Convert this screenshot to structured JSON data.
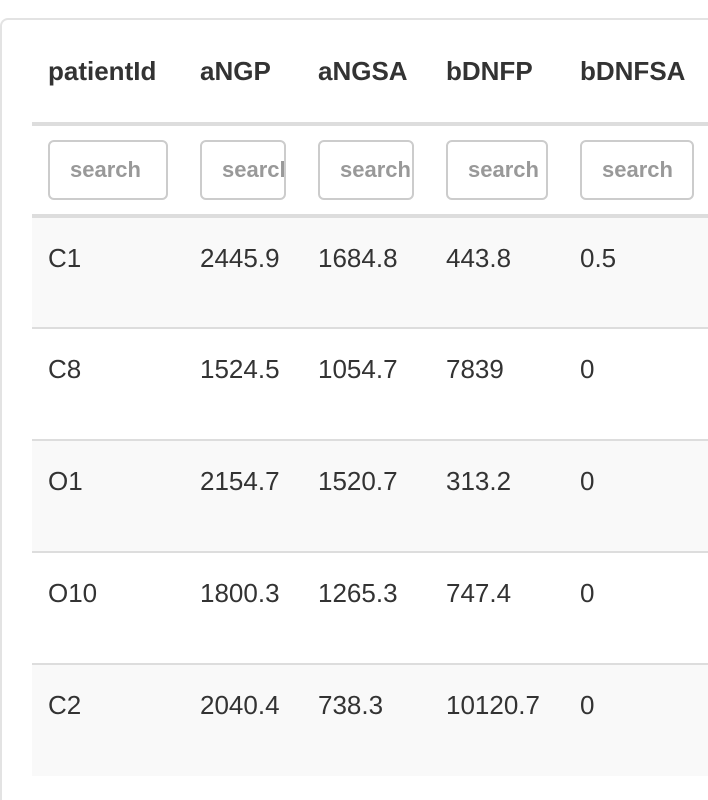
{
  "table": {
    "columns": [
      "patientId",
      "aNGP",
      "aNGSA",
      "bDNFP",
      "bDNFSA"
    ],
    "filter_placeholder": "search",
    "rows": [
      [
        "C1",
        "2445.9",
        "1684.8",
        "443.8",
        "0.5"
      ],
      [
        "C8",
        "1524.5",
        "1054.7",
        "7839",
        "0"
      ],
      [
        "O1",
        "2154.7",
        "1520.7",
        "313.2",
        "0"
      ],
      [
        "O10",
        "1800.3",
        "1265.3",
        "747.4",
        "0"
      ],
      [
        "C2",
        "2040.4",
        "738.3",
        "10120.7",
        "0"
      ]
    ]
  }
}
